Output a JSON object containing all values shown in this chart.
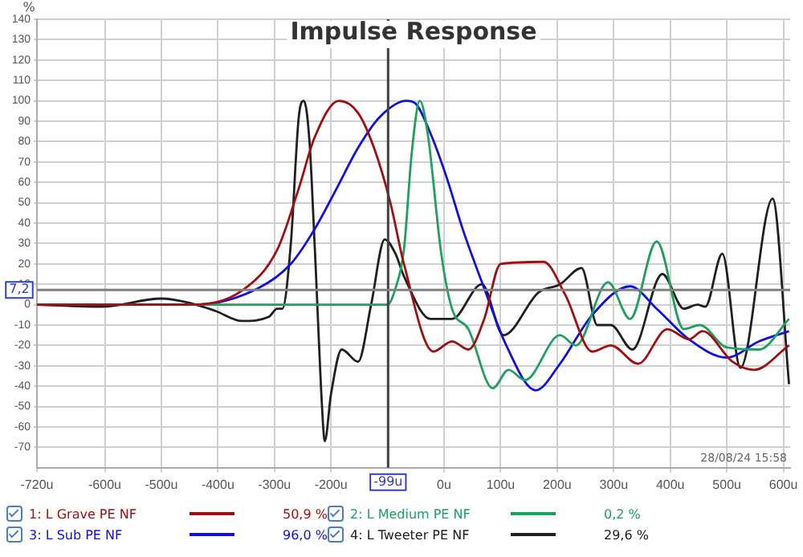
{
  "chart_data": {
    "type": "line",
    "title": "Impulse Response",
    "ylabel": "%",
    "xlim": [
      -720,
      612
    ],
    "ylim": [
      -80,
      140
    ],
    "xticks": [
      {
        "value": -720,
        "label": "-720u"
      },
      {
        "value": -600,
        "label": "-600u"
      },
      {
        "value": -500,
        "label": "-500u"
      },
      {
        "value": -400,
        "label": "-400u"
      },
      {
        "value": -300,
        "label": "-300u"
      },
      {
        "value": -200,
        "label": "-200u"
      },
      {
        "value": 0,
        "label": "0u"
      },
      {
        "value": 100,
        "label": "100u"
      },
      {
        "value": 200,
        "label": "200u"
      },
      {
        "value": 300,
        "label": "300u"
      },
      {
        "value": 400,
        "label": "400u"
      },
      {
        "value": 500,
        "label": "500u"
      },
      {
        "value": 600,
        "label": "600u"
      }
    ],
    "yticks": [
      -70,
      -60,
      -50,
      -40,
      -30,
      -20,
      -10,
      0,
      10,
      20,
      30,
      40,
      50,
      60,
      70,
      80,
      90,
      100,
      110,
      120,
      130,
      140
    ],
    "grid": true,
    "legend": "bottom",
    "marker": "none",
    "line_style": "solid",
    "ref_lines": [
      {
        "axis": "x",
        "value": -99,
        "label": "-99u",
        "color": "#404040"
      },
      {
        "axis": "y",
        "value": 7.2,
        "label": "7,2",
        "color": "#808080"
      }
    ],
    "annotations": [
      "28/08/24 15:58",
      "50,9 %",
      "0,2 %",
      "96,0 %",
      "29,6 %"
    ],
    "series": [
      {
        "name": "1: L Grave PE NF",
        "color": "#a01010",
        "x": [
          -720,
          -450,
          -357,
          -295,
          -257,
          -229,
          -186,
          -152,
          -124,
          -95,
          -71,
          -19,
          14,
          43,
          71,
          100,
          176,
          214,
          262,
          295,
          343,
          395,
          433,
          457,
          510,
          548,
          610
        ],
        "values": [
          0,
          0,
          7,
          27,
          57,
          82,
          100,
          94,
          77,
          50,
          20,
          -23,
          -18,
          -22,
          -7,
          20,
          21,
          5,
          -23,
          -20,
          -29,
          -12,
          -17,
          -13,
          -28,
          -32,
          -20
        ]
      },
      {
        "name": "2: L Medium PE NF",
        "color": "#20a060",
        "x": [
          -720,
          -100,
          -86,
          -71,
          -57,
          -43,
          -29,
          -5,
          14,
          43,
          86,
          114,
          143,
          205,
          233,
          290,
          329,
          376,
          424,
          452,
          500,
          557,
          610
        ],
        "values": [
          0,
          0,
          8,
          27,
          75,
          100,
          84,
          25,
          -2,
          -12,
          -41,
          -32,
          -37,
          -15,
          -20,
          11,
          -7,
          31,
          -12,
          -10,
          -21,
          -22,
          -7
        ]
      },
      {
        "name": "3: L Sub PE NF",
        "color": "#1010e0",
        "x": [
          -720,
          -440,
          -329,
          -271,
          -229,
          -190,
          -152,
          -114,
          -67,
          -52,
          -24,
          5,
          33,
          71,
          110,
          162,
          205,
          262,
          329,
          376,
          433,
          500,
          557,
          610
        ],
        "values": [
          0,
          0,
          8,
          20,
          37,
          57,
          77,
          92,
          100,
          99,
          84,
          62,
          37,
          8,
          -20,
          -42,
          -29,
          -5,
          9,
          -2,
          -17,
          -26,
          -18,
          -13
        ]
      },
      {
        "name": "4: L Tweeter PE NF",
        "color": "#202020",
        "x": [
          -720,
          -605,
          -500,
          -452,
          -405,
          -357,
          -310,
          -295,
          -286,
          -271,
          -257,
          -248,
          -238,
          -229,
          -214,
          -211,
          -200,
          -181,
          -152,
          -129,
          -105,
          -86,
          -71,
          -24,
          14,
          67,
          105,
          167,
          205,
          243,
          271,
          295,
          333,
          386,
          424,
          448,
          462,
          492,
          524,
          581,
          610
        ],
        "values": [
          0,
          -1,
          3,
          1,
          -3,
          -8,
          -6,
          -2,
          -2,
          30,
          92,
          100,
          80,
          30,
          -59,
          -67,
          -44,
          -22,
          -28,
          0,
          32,
          25,
          14,
          -7,
          -7,
          10,
          -15,
          6,
          10,
          18,
          -10,
          -10,
          -22,
          15,
          -2,
          0,
          -1,
          25,
          -31,
          52,
          -39
        ]
      }
    ]
  }
}
